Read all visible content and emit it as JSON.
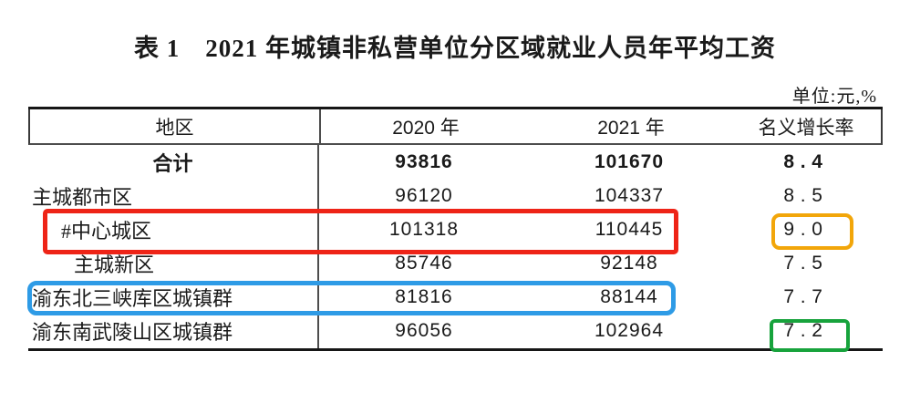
{
  "title": "表 1　2021 年城镇非私营单位分区域就业人员年平均工资",
  "unit_note": "单位:元,%",
  "table": {
    "columns": [
      "地区",
      "2020 年",
      "2021 年",
      "名义增长率"
    ],
    "rows": [
      {
        "region": "合计",
        "y2020": "93816",
        "y2021": "101670",
        "growth": "8.4"
      },
      {
        "region": "主城都市区",
        "y2020": "96120",
        "y2021": "104337",
        "growth": "8.5"
      },
      {
        "region": "#中心城区",
        "y2020": "101318",
        "y2021": "110445",
        "growth": "9.0"
      },
      {
        "region": "主城新区",
        "y2020": "85746",
        "y2021": "92148",
        "growth": "7.5"
      },
      {
        "region": "渝东北三峡库区城镇群",
        "y2020": "81816",
        "y2021": "88144",
        "growth": "7.7"
      },
      {
        "region": "渝东南武陵山区城镇群",
        "y2020": "96056",
        "y2021": "102964",
        "growth": "7.2"
      }
    ]
  },
  "chart_data": {
    "type": "table",
    "title": "表 1　2021 年城镇非私营单位分区域就业人员年平均工资",
    "unit": "单位:元,%",
    "categories": [
      "合计",
      "主城都市区",
      "#中心城区",
      "主城新区",
      "渝东北三峡库区城镇群",
      "渝东南武陵山区城镇群"
    ],
    "series": [
      {
        "name": "2020 年",
        "values": [
          93816,
          96120,
          101318,
          85746,
          81816,
          96056
        ]
      },
      {
        "name": "2021 年",
        "values": [
          101670,
          104337,
          110445,
          92148,
          88144,
          102964
        ]
      },
      {
        "name": "名义增长率",
        "values": [
          8.4,
          8.5,
          9.0,
          7.5,
          7.7,
          7.2
        ]
      }
    ]
  },
  "annotations": {
    "red_box_color": "#ee2417",
    "yellow_box_color": "#f2a60a",
    "blue_box_color": "#2e9be6",
    "green_box_color": "#17a33c"
  }
}
